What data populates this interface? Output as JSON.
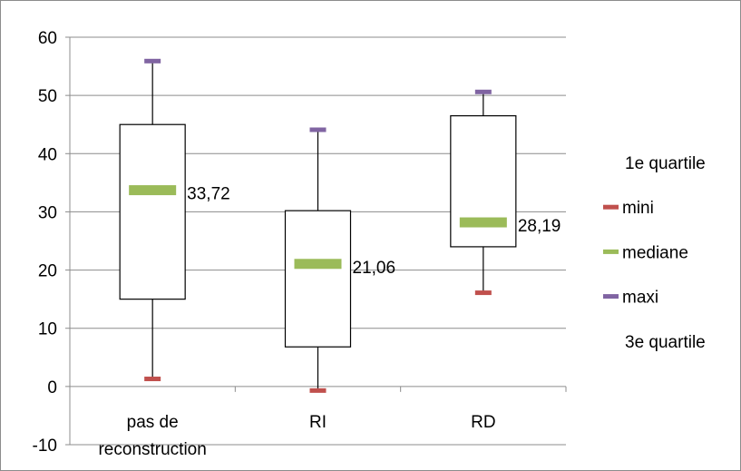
{
  "chart_data": {
    "type": "boxplot",
    "categories": [
      "pas de reconstruction",
      "RI",
      "RD"
    ],
    "category_tick_lines": [
      [
        "pas de",
        "reconstruction"
      ],
      [
        "RI"
      ],
      [
        "RD"
      ]
    ],
    "ylim": [
      -10,
      60
    ],
    "yticks": [
      -10,
      0,
      10,
      20,
      30,
      40,
      50,
      60
    ],
    "grid": true,
    "legend_position": "right",
    "series": [
      {
        "name": "1e quartile",
        "values": [
          15,
          6.8,
          24
        ]
      },
      {
        "name": "mini",
        "values": [
          1.3,
          -0.7,
          16.1
        ],
        "color": "#c0504d"
      },
      {
        "name": "mediane",
        "values": [
          33.72,
          21.06,
          28.19
        ],
        "color": "#9bbb59"
      },
      {
        "name": "maxi",
        "values": [
          55.9,
          44.1,
          50.6
        ],
        "color": "#8064a2"
      },
      {
        "name": "3e quartile",
        "values": [
          45,
          30.2,
          46.5
        ]
      }
    ],
    "median_labels": [
      "33,72",
      "21,06",
      "28,19"
    ],
    "legend": [
      {
        "label": "1e quartile",
        "marker": "none"
      },
      {
        "label": "mini",
        "marker": "#c0504d"
      },
      {
        "label": "mediane",
        "marker": "#9bbb59"
      },
      {
        "label": "maxi",
        "marker": "#8064a2"
      },
      {
        "label": "3e quartile",
        "marker": "none"
      }
    ]
  }
}
